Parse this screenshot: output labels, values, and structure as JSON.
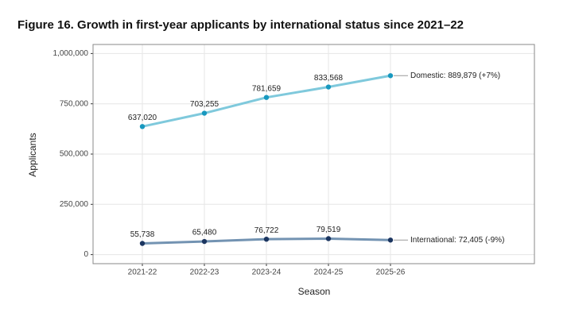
{
  "chart_data": {
    "type": "line",
    "title": "Figure 16. Growth in first-year applicants by international status since 2021–22",
    "x_label": "Season",
    "y_label": "Applicants",
    "categories": [
      "2021-22",
      "2022-23",
      "2023-24",
      "2024-25",
      "2025-26"
    ],
    "series": [
      {
        "name": "Domestic",
        "color": "#7fc9dc",
        "point_color": "#1798bf",
        "values": [
          637020,
          703255,
          781659,
          833568,
          889879
        ],
        "value_labels": [
          "637,020",
          "703,255",
          "781,659",
          "833,568",
          null
        ],
        "end_label": "Domestic: 889,879 (+7%)"
      },
      {
        "name": "International",
        "color": "#7393b2",
        "point_color": "#1b3560",
        "values": [
          55738,
          65480,
          76722,
          79519,
          72405
        ],
        "value_labels": [
          "55,738",
          "65,480",
          "76,722",
          "79,519",
          null
        ],
        "end_label": "International: 72,405 (-9%)"
      }
    ],
    "ylim": [
      -45000,
      1045000
    ],
    "yticks": [
      0,
      {
        "value": 250000,
        "label": "250,000"
      },
      {
        "value": 500000,
        "label": "500,000"
      },
      {
        "value": 750000,
        "label": "750,000"
      },
      {
        "value": 1000000,
        "label": "1,000,000"
      }
    ],
    "grid": true
  }
}
